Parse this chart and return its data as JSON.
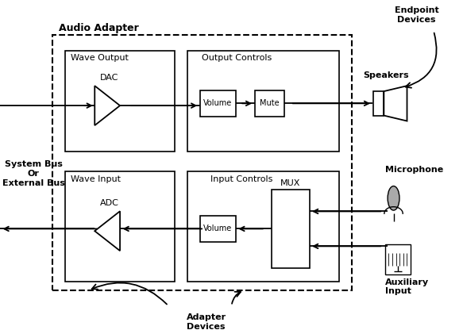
{
  "bg_color": "#ffffff",
  "line_color": "#000000",
  "audio_adapter_label": "Audio Adapter",
  "wave_output_label": "Wave Output",
  "output_controls_label": "Output Controls",
  "wave_input_label": "Wave Input",
  "input_controls_label": "Input Controls",
  "dac_label": "DAC",
  "adc_label": "ADC",
  "volume_label": "Volume",
  "mute_label": "Mute",
  "volume2_label": "Volume",
  "mux_label": "MUX",
  "speakers_label": "Speakers",
  "microphone_label": "Microphone",
  "auxiliary_label": "Auxiliary\nInput",
  "endpoint_label": "Endpoint\nDevices",
  "system_bus_label": "System Bus\nOr\nExternal Bus",
  "adapter_devices_label": "Adapter\nDevices",
  "fig_width": 5.83,
  "fig_height": 4.16,
  "dpi": 100,
  "xlim": [
    0,
    11
  ],
  "ylim": [
    0,
    7.5
  ]
}
